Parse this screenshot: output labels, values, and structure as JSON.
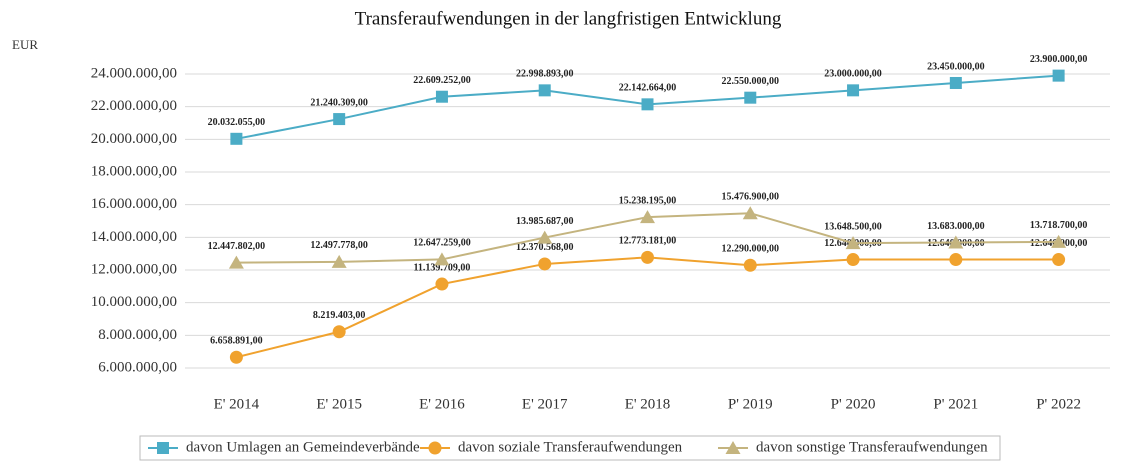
{
  "chart_data": {
    "type": "line",
    "title": "Transferaufwendungen in der langfristigen Entwicklung",
    "y_label": "EUR",
    "categories": [
      "E' 2014",
      "E' 2015",
      "E' 2016",
      "E' 2017",
      "E' 2018",
      "P' 2019",
      "P' 2020",
      "P' 2021",
      "P' 2022"
    ],
    "series": [
      {
        "name": "davon Umlagen an Gemeindeverbände",
        "color": "#4bacc6",
        "marker": "square",
        "values": [
          20032055,
          21240309,
          22609252,
          22998893,
          22142664,
          22550000,
          23000000,
          23450000,
          23900000
        ],
        "value_labels": [
          "20.032.055,00",
          "21.240.309,00",
          "22.609.252,00",
          "22.998.893,00",
          "22.142.664,00",
          "22.550.000,00",
          "23.000.000,00",
          "23.450.000,00",
          "23.900.000,00"
        ]
      },
      {
        "name": "davon soziale Transferaufwendungen",
        "color": "#f0a22e",
        "marker": "circle",
        "values": [
          6658891,
          8219403,
          11139709,
          12370568,
          12773181,
          12290000,
          12640000,
          12640000,
          12640000
        ],
        "value_labels": [
          "6.658.891,00",
          "8.219.403,00",
          "11.139.709,00",
          "12.370.568,00",
          "12.773.181,00",
          "12.290.000,00",
          "12.640.000,00",
          "12.640.000,00",
          "12.640.000,00"
        ]
      },
      {
        "name": "davon sonstige Transferaufwendungen",
        "color": "#c4b47f",
        "marker": "triangle",
        "values": [
          12447802,
          12497778,
          12647259,
          13985687,
          15238195,
          15476900,
          13648500,
          13683000,
          13718700
        ],
        "value_labels": [
          "12.447.802,00",
          "12.497.778,00",
          "12.647.259,00",
          "13.985.687,00",
          "15.238.195,00",
          "15.476.900,00",
          "13.648.500,00",
          "13.683.000,00",
          "13.718.700,00"
        ]
      }
    ],
    "ylim": [
      6000000,
      24000000
    ],
    "yticks": [
      {
        "value": 6000000,
        "label": "6.000.000,00"
      },
      {
        "value": 8000000,
        "label": "8.000.000,00"
      },
      {
        "value": 10000000,
        "label": "10.000.000,00"
      },
      {
        "value": 12000000,
        "label": "12.000.000,00"
      },
      {
        "value": 14000000,
        "label": "14.000.000,00"
      },
      {
        "value": 16000000,
        "label": "16.000.000,00"
      },
      {
        "value": 18000000,
        "label": "18.000.000,00"
      },
      {
        "value": 20000000,
        "label": "20.000.000,00"
      },
      {
        "value": 22000000,
        "label": "22.000.000,00"
      },
      {
        "value": 24000000,
        "label": "24.000.000,00"
      }
    ],
    "grid": true,
    "legend": "bottom"
  }
}
